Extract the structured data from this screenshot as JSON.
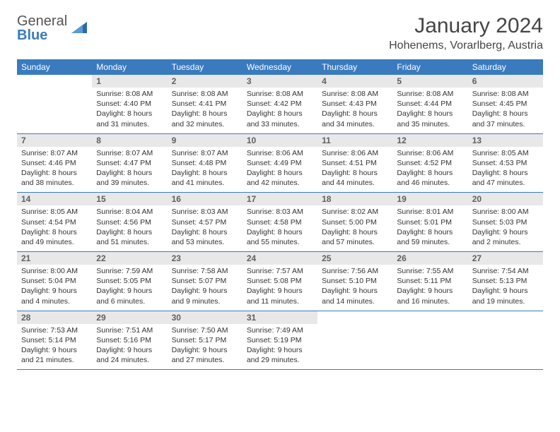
{
  "logo": {
    "general": "General",
    "blue": "Blue"
  },
  "title": "January 2024",
  "location": "Hohenems, Vorarlberg, Austria",
  "colors": {
    "header_bg": "#3a7bbf",
    "header_text": "#ffffff",
    "daynum_bg": "#e8e8e8",
    "daynum_text": "#606060",
    "body_text": "#333333",
    "divider": "#3a7bbf",
    "page_bg": "#ffffff",
    "logo_accent": "#2f6aa8"
  },
  "weekdays": [
    "Sunday",
    "Monday",
    "Tuesday",
    "Wednesday",
    "Thursday",
    "Friday",
    "Saturday"
  ],
  "weeks": [
    [
      {
        "num": "",
        "lines": []
      },
      {
        "num": "1",
        "lines": [
          "Sunrise: 8:08 AM",
          "Sunset: 4:40 PM",
          "Daylight: 8 hours",
          "and 31 minutes."
        ]
      },
      {
        "num": "2",
        "lines": [
          "Sunrise: 8:08 AM",
          "Sunset: 4:41 PM",
          "Daylight: 8 hours",
          "and 32 minutes."
        ]
      },
      {
        "num": "3",
        "lines": [
          "Sunrise: 8:08 AM",
          "Sunset: 4:42 PM",
          "Daylight: 8 hours",
          "and 33 minutes."
        ]
      },
      {
        "num": "4",
        "lines": [
          "Sunrise: 8:08 AM",
          "Sunset: 4:43 PM",
          "Daylight: 8 hours",
          "and 34 minutes."
        ]
      },
      {
        "num": "5",
        "lines": [
          "Sunrise: 8:08 AM",
          "Sunset: 4:44 PM",
          "Daylight: 8 hours",
          "and 35 minutes."
        ]
      },
      {
        "num": "6",
        "lines": [
          "Sunrise: 8:08 AM",
          "Sunset: 4:45 PM",
          "Daylight: 8 hours",
          "and 37 minutes."
        ]
      }
    ],
    [
      {
        "num": "7",
        "lines": [
          "Sunrise: 8:07 AM",
          "Sunset: 4:46 PM",
          "Daylight: 8 hours",
          "and 38 minutes."
        ]
      },
      {
        "num": "8",
        "lines": [
          "Sunrise: 8:07 AM",
          "Sunset: 4:47 PM",
          "Daylight: 8 hours",
          "and 39 minutes."
        ]
      },
      {
        "num": "9",
        "lines": [
          "Sunrise: 8:07 AM",
          "Sunset: 4:48 PM",
          "Daylight: 8 hours",
          "and 41 minutes."
        ]
      },
      {
        "num": "10",
        "lines": [
          "Sunrise: 8:06 AM",
          "Sunset: 4:49 PM",
          "Daylight: 8 hours",
          "and 42 minutes."
        ]
      },
      {
        "num": "11",
        "lines": [
          "Sunrise: 8:06 AM",
          "Sunset: 4:51 PM",
          "Daylight: 8 hours",
          "and 44 minutes."
        ]
      },
      {
        "num": "12",
        "lines": [
          "Sunrise: 8:06 AM",
          "Sunset: 4:52 PM",
          "Daylight: 8 hours",
          "and 46 minutes."
        ]
      },
      {
        "num": "13",
        "lines": [
          "Sunrise: 8:05 AM",
          "Sunset: 4:53 PM",
          "Daylight: 8 hours",
          "and 47 minutes."
        ]
      }
    ],
    [
      {
        "num": "14",
        "lines": [
          "Sunrise: 8:05 AM",
          "Sunset: 4:54 PM",
          "Daylight: 8 hours",
          "and 49 minutes."
        ]
      },
      {
        "num": "15",
        "lines": [
          "Sunrise: 8:04 AM",
          "Sunset: 4:56 PM",
          "Daylight: 8 hours",
          "and 51 minutes."
        ]
      },
      {
        "num": "16",
        "lines": [
          "Sunrise: 8:03 AM",
          "Sunset: 4:57 PM",
          "Daylight: 8 hours",
          "and 53 minutes."
        ]
      },
      {
        "num": "17",
        "lines": [
          "Sunrise: 8:03 AM",
          "Sunset: 4:58 PM",
          "Daylight: 8 hours",
          "and 55 minutes."
        ]
      },
      {
        "num": "18",
        "lines": [
          "Sunrise: 8:02 AM",
          "Sunset: 5:00 PM",
          "Daylight: 8 hours",
          "and 57 minutes."
        ]
      },
      {
        "num": "19",
        "lines": [
          "Sunrise: 8:01 AM",
          "Sunset: 5:01 PM",
          "Daylight: 8 hours",
          "and 59 minutes."
        ]
      },
      {
        "num": "20",
        "lines": [
          "Sunrise: 8:00 AM",
          "Sunset: 5:03 PM",
          "Daylight: 9 hours",
          "and 2 minutes."
        ]
      }
    ],
    [
      {
        "num": "21",
        "lines": [
          "Sunrise: 8:00 AM",
          "Sunset: 5:04 PM",
          "Daylight: 9 hours",
          "and 4 minutes."
        ]
      },
      {
        "num": "22",
        "lines": [
          "Sunrise: 7:59 AM",
          "Sunset: 5:05 PM",
          "Daylight: 9 hours",
          "and 6 minutes."
        ]
      },
      {
        "num": "23",
        "lines": [
          "Sunrise: 7:58 AM",
          "Sunset: 5:07 PM",
          "Daylight: 9 hours",
          "and 9 minutes."
        ]
      },
      {
        "num": "24",
        "lines": [
          "Sunrise: 7:57 AM",
          "Sunset: 5:08 PM",
          "Daylight: 9 hours",
          "and 11 minutes."
        ]
      },
      {
        "num": "25",
        "lines": [
          "Sunrise: 7:56 AM",
          "Sunset: 5:10 PM",
          "Daylight: 9 hours",
          "and 14 minutes."
        ]
      },
      {
        "num": "26",
        "lines": [
          "Sunrise: 7:55 AM",
          "Sunset: 5:11 PM",
          "Daylight: 9 hours",
          "and 16 minutes."
        ]
      },
      {
        "num": "27",
        "lines": [
          "Sunrise: 7:54 AM",
          "Sunset: 5:13 PM",
          "Daylight: 9 hours",
          "and 19 minutes."
        ]
      }
    ],
    [
      {
        "num": "28",
        "lines": [
          "Sunrise: 7:53 AM",
          "Sunset: 5:14 PM",
          "Daylight: 9 hours",
          "and 21 minutes."
        ]
      },
      {
        "num": "29",
        "lines": [
          "Sunrise: 7:51 AM",
          "Sunset: 5:16 PM",
          "Daylight: 9 hours",
          "and 24 minutes."
        ]
      },
      {
        "num": "30",
        "lines": [
          "Sunrise: 7:50 AM",
          "Sunset: 5:17 PM",
          "Daylight: 9 hours",
          "and 27 minutes."
        ]
      },
      {
        "num": "31",
        "lines": [
          "Sunrise: 7:49 AM",
          "Sunset: 5:19 PM",
          "Daylight: 9 hours",
          "and 29 minutes."
        ]
      },
      {
        "num": "",
        "lines": []
      },
      {
        "num": "",
        "lines": []
      },
      {
        "num": "",
        "lines": []
      }
    ]
  ]
}
